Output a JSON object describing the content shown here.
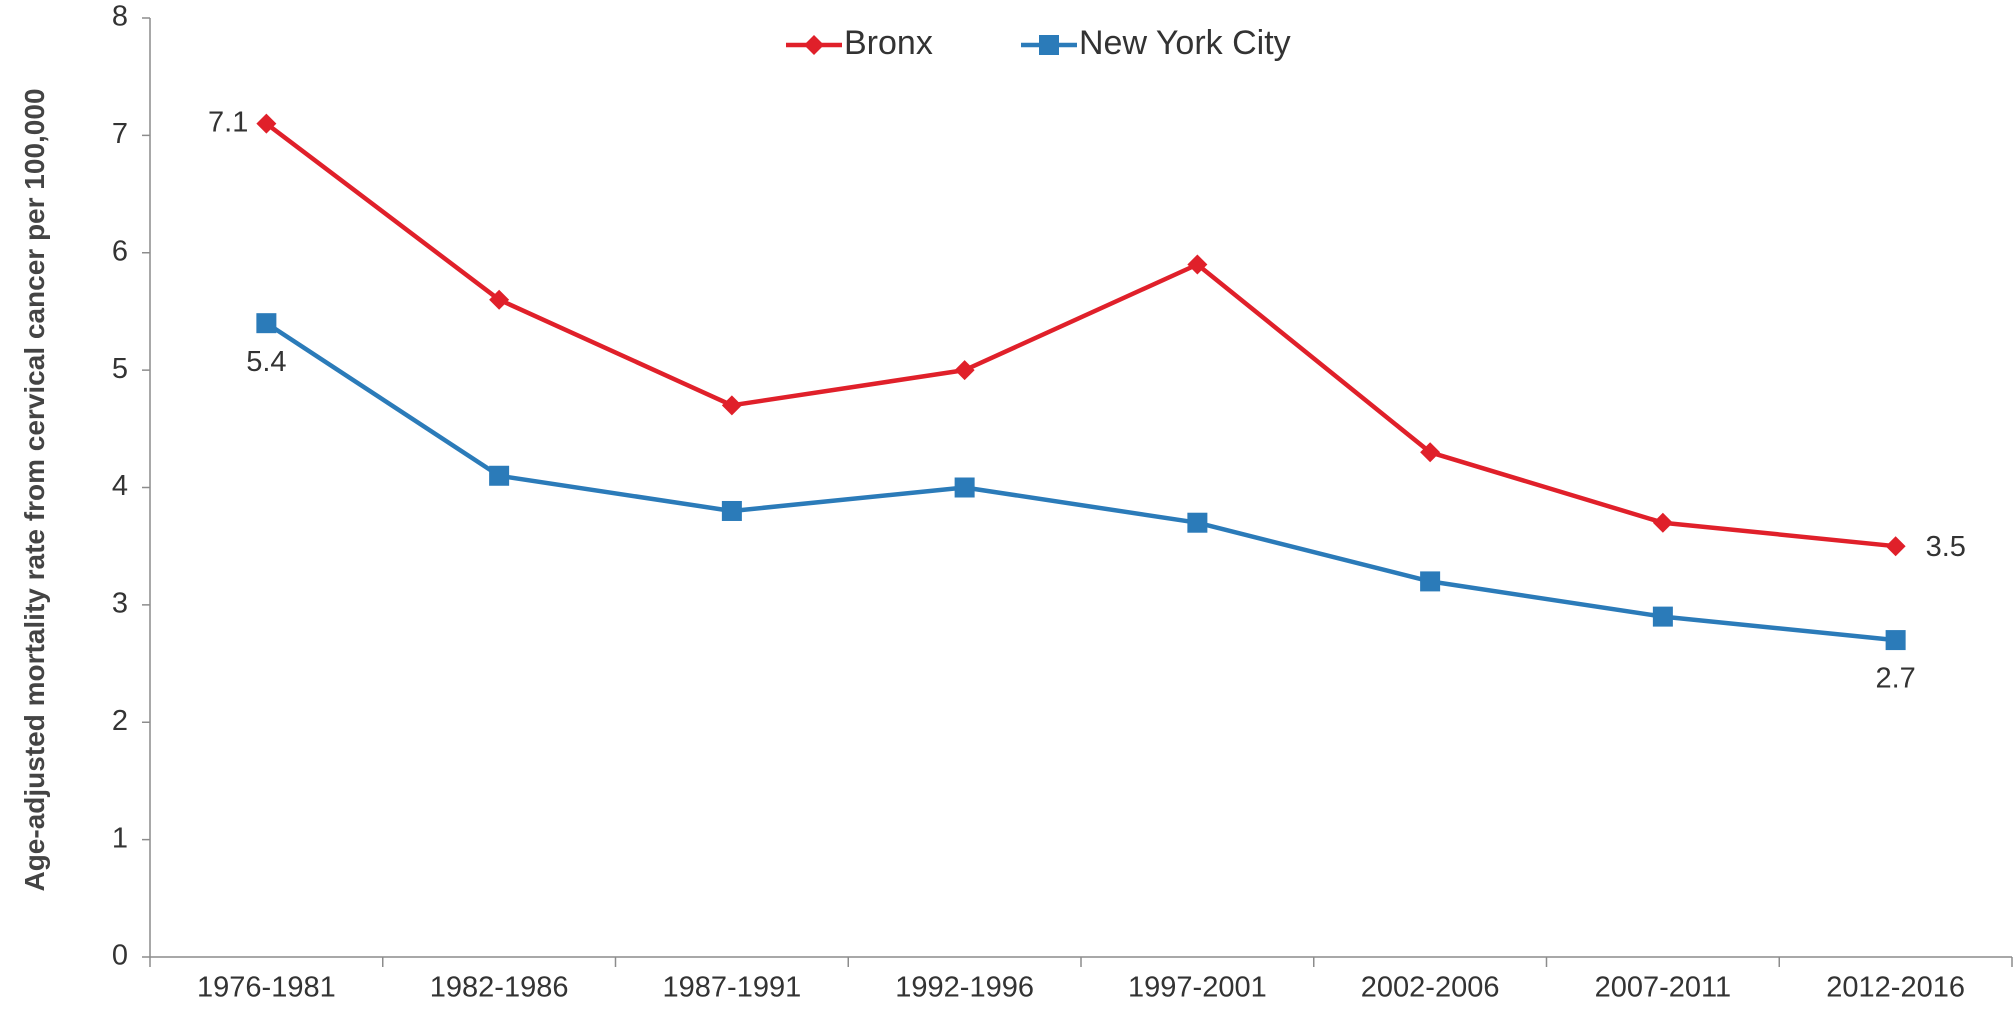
{
  "chart_data": {
    "type": "line",
    "y_label": "Age-adjusted mortality rate from cervical cancer per 100,000",
    "categories": [
      "1976-1981",
      "1982-1986",
      "1987-1991",
      "1992-1996",
      "1997-2001",
      "2002-2006",
      "2007-2011",
      "2012-2016"
    ],
    "series": [
      {
        "name": "Bronx",
        "color": "#e0202a",
        "marker": "diamond",
        "values": [
          7.1,
          5.6,
          4.7,
          5.0,
          5.9,
          4.3,
          3.7,
          3.5
        ]
      },
      {
        "name": "New York City",
        "color": "#2b7bb9",
        "marker": "square",
        "values": [
          5.4,
          4.1,
          3.8,
          4.0,
          3.7,
          3.2,
          2.9,
          2.7
        ]
      }
    ],
    "ylim": [
      0,
      8
    ],
    "yticks": [
      0,
      1,
      2,
      3,
      4,
      5,
      6,
      7,
      8
    ],
    "grid": false,
    "legend": "top"
  }
}
